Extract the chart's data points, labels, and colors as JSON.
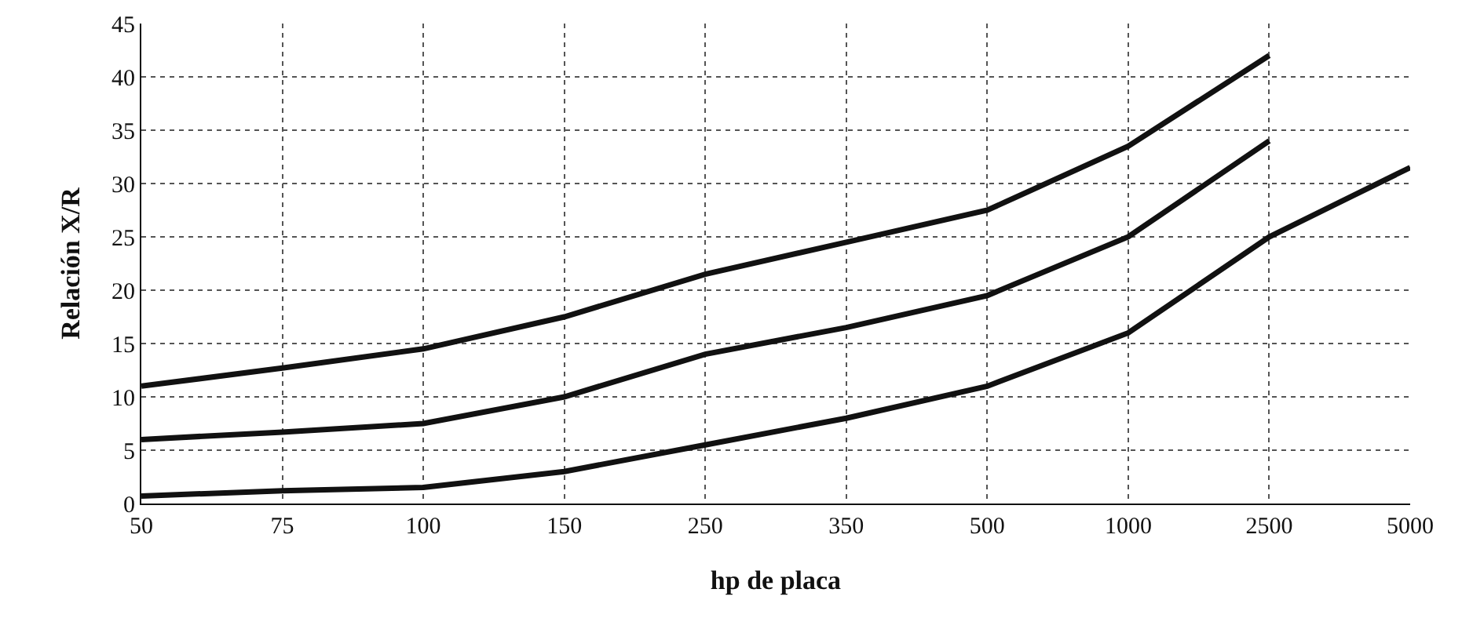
{
  "chart_data": {
    "type": "line",
    "xlabel": "hp de placa",
    "ylabel": "Relación X/R",
    "categories": [
      "50",
      "75",
      "100",
      "150",
      "250",
      "350",
      "500",
      "1000",
      "2500",
      "5000"
    ],
    "series": [
      {
        "color": "#111111",
        "values": [
          11,
          12.7,
          14.5,
          17.5,
          21.5,
          24.5,
          27.5,
          33.5,
          42,
          null
        ]
      },
      {
        "color": "#111111",
        "values": [
          6,
          6.7,
          7.5,
          10,
          14,
          16.5,
          19.5,
          25,
          34,
          null
        ]
      },
      {
        "color": "#111111",
        "values": [
          0.7,
          1.2,
          1.5,
          3,
          5.5,
          8,
          11,
          16,
          25,
          31.5
        ]
      }
    ],
    "ylim": [
      0,
      45
    ],
    "yticks": [
      0,
      5,
      10,
      15,
      20,
      25,
      30,
      35,
      40,
      45
    ],
    "grid": true,
    "marker": "none",
    "line_style": "solid"
  }
}
